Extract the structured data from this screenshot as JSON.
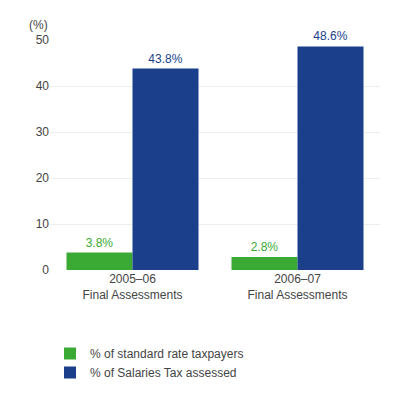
{
  "chart_data": {
    "type": "bar",
    "ylabel": "(%)",
    "categories": [
      "2005–06\nFinal Assessments",
      "2006–07\nFinal Assessments"
    ],
    "series": [
      {
        "name": "% of standard rate taxpayers",
        "color": "#3aaa35",
        "values": [
          3.8,
          2.8
        ],
        "value_labels": [
          "3.8%",
          "2.8%"
        ]
      },
      {
        "name": "% of Salaries Tax assessed",
        "color": "#1B3F8B",
        "values": [
          43.8,
          48.6
        ],
        "value_labels": [
          "43.8%",
          "48.6%"
        ]
      }
    ],
    "ylim": [
      0,
      50
    ],
    "yticks": [
      0,
      10,
      20,
      30,
      40,
      50
    ],
    "grid": true,
    "legend": "bottom",
    "data_labels": true
  }
}
